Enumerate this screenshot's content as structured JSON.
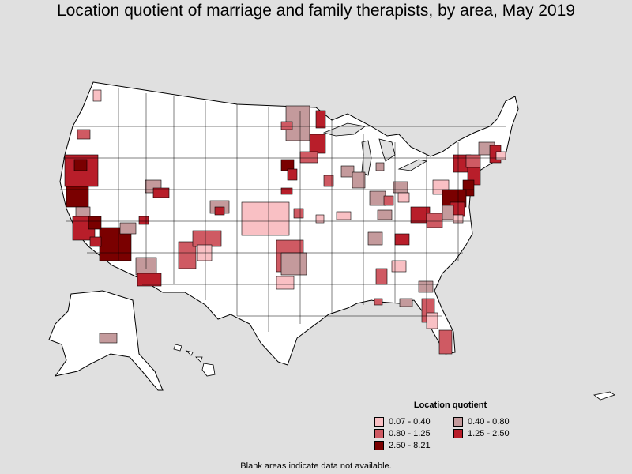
{
  "title": "Location quotient of marriage and family therapists, by area, May 2019",
  "legend": {
    "title": "Location quotient",
    "items": [
      {
        "label": "0.07 - 0.40",
        "color": "#f9c0c4"
      },
      {
        "label": "0.40 - 0.80",
        "color": "#c49a9c"
      },
      {
        "label": "0.80 - 1.25",
        "color": "#cf5a63"
      },
      {
        "label": "1.25 - 2.50",
        "color": "#b81e2a"
      },
      {
        "label": "2.50 - 8.21",
        "color": "#7a0000"
      }
    ]
  },
  "note": "Blank areas indicate data not available.",
  "colors": {
    "background": "#e0e0e0",
    "land": "#ffffff",
    "border": "#000000"
  }
}
